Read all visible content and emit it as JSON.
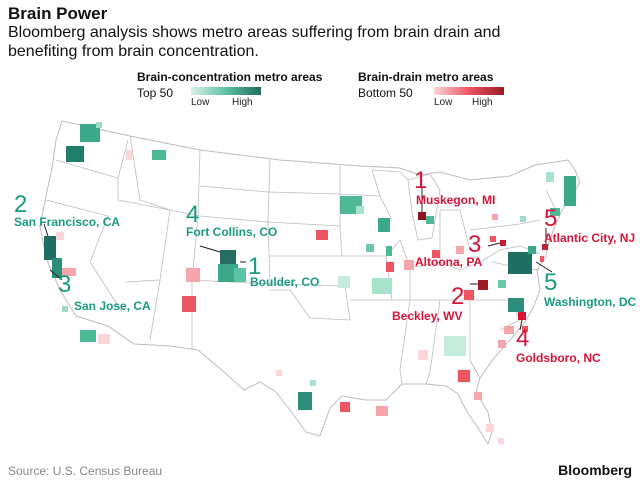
{
  "title": "Brain Power",
  "subtitle": "Bloomberg analysis shows metro areas suffering from brain drain and benefiting from brain concentration.",
  "legend": {
    "concentration": {
      "title": "Brain-concentration metro areas",
      "subtitle": "Top 50",
      "low": "Low",
      "high": "High",
      "color_low": "#d8f1e7",
      "color_high": "#1f6e62"
    },
    "drain": {
      "title": "Brain-drain metro areas",
      "subtitle": "Bottom 50",
      "low": "Low",
      "high": "High",
      "color_low": "#fbd6d8",
      "color_high": "#9b1b24"
    }
  },
  "callouts": [
    {
      "rank": "1",
      "city": "Muskegon, MI",
      "type": "drain"
    },
    {
      "rank": "2",
      "city": "Beckley, WV",
      "type": "drain"
    },
    {
      "rank": "3",
      "city": "Altoona, PA",
      "type": "drain"
    },
    {
      "rank": "4",
      "city": "Goldsboro, NC",
      "type": "drain"
    },
    {
      "rank": "5",
      "city": "Atlantic City, NJ",
      "type": "drain"
    },
    {
      "rank": "1",
      "city": "Boulder, CO",
      "type": "concentration"
    },
    {
      "rank": "2",
      "city": "San Francisco, CA",
      "type": "concentration"
    },
    {
      "rank": "3",
      "city": "San Jose, CA",
      "type": "concentration"
    },
    {
      "rank": "4",
      "city": "Fort Collins, CO",
      "type": "concentration"
    },
    {
      "rank": "5",
      "city": "Washington, DC",
      "type": "concentration"
    }
  ],
  "colors": {
    "concentration_label": "#1a9a80",
    "drain_label": "#d6143a",
    "state_border": "#bdbdbd",
    "land": "#ffffff"
  },
  "source": "Source: U.S. Census Bureau",
  "brand": "Bloomberg"
}
